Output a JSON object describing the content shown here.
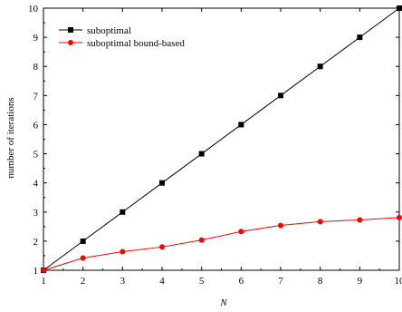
{
  "chart_data": {
    "type": "line",
    "xlabel": "N",
    "ylabel": "number of iterations",
    "xlim": [
      1,
      10
    ],
    "ylim": [
      1,
      10
    ],
    "xticks": [
      1,
      2,
      3,
      4,
      5,
      6,
      7,
      8,
      9,
      10
    ],
    "yticks": [
      1,
      2,
      3,
      4,
      5,
      6,
      7,
      8,
      9,
      10
    ],
    "grid": false,
    "legend_position": "top-left",
    "series": [
      {
        "name": "suboptimal",
        "color": "#000000",
        "marker": "square",
        "x": [
          1,
          2,
          3,
          4,
          5,
          6,
          7,
          8,
          9,
          10
        ],
        "y": [
          1,
          2,
          3,
          4,
          5,
          6,
          7,
          8,
          9,
          10
        ]
      },
      {
        "name": "suboptimal bound-based",
        "color": "#ff0000",
        "marker": "circle",
        "x": [
          1,
          2,
          3,
          4,
          5,
          6,
          7,
          8,
          9,
          10
        ],
        "y": [
          1.0,
          1.42,
          1.64,
          1.8,
          2.04,
          2.33,
          2.54,
          2.67,
          2.73,
          2.81
        ]
      }
    ]
  }
}
